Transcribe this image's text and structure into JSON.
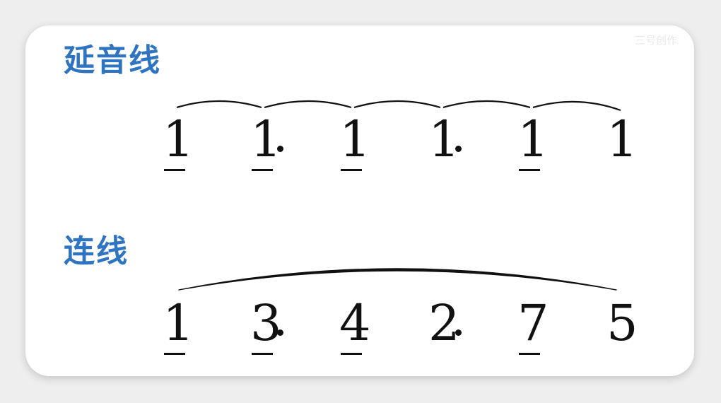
{
  "watermark": "三号创作",
  "tie_section": {
    "heading": "延音线",
    "notes": [
      {
        "digit": "1",
        "underline": true,
        "dot": false
      },
      {
        "digit": "1",
        "underline": true,
        "dot": true
      },
      {
        "digit": "1",
        "underline": true,
        "dot": false
      },
      {
        "digit": "1",
        "underline": false,
        "dot": true
      },
      {
        "digit": "1",
        "underline": true,
        "dot": false
      },
      {
        "digit": "1",
        "underline": false,
        "dot": false
      }
    ]
  },
  "slur_section": {
    "heading": "连线",
    "notes": [
      {
        "digit": "1",
        "underline": true,
        "dot": false
      },
      {
        "digit": "3",
        "underline": true,
        "dot": true
      },
      {
        "digit": "4",
        "underline": true,
        "dot": false
      },
      {
        "digit": "2",
        "underline": false,
        "dot": true
      },
      {
        "digit": "7",
        "underline": true,
        "dot": false
      },
      {
        "digit": "5",
        "underline": false,
        "dot": false
      }
    ]
  },
  "colors": {
    "heading": "#2f74c0",
    "ink": "#111111",
    "card": "#ffffff",
    "background": "#eeeeee"
  }
}
